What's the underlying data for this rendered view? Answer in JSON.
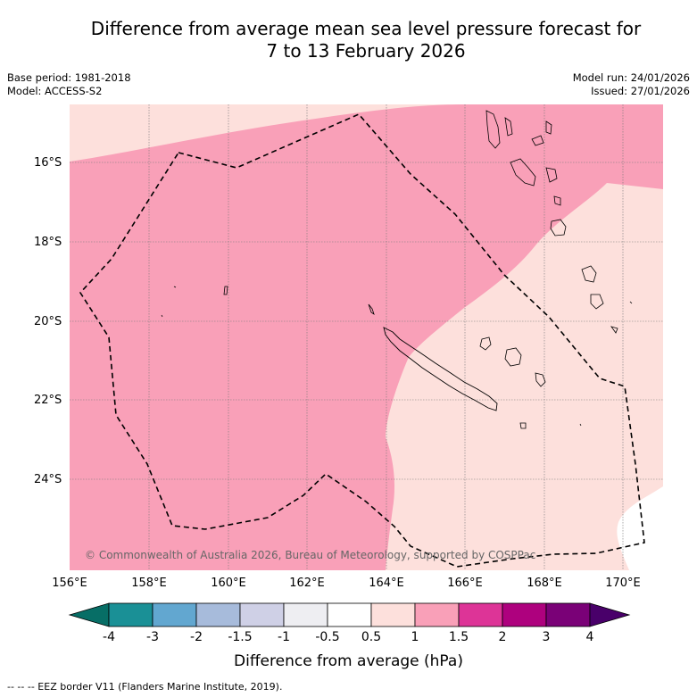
{
  "title_line1": "Difference from average mean sea level pressure forecast for",
  "title_line2": "7 to 13 February 2026",
  "meta_left": {
    "base_period": "Base period: 1981-2018",
    "model": "Model: ACCESS-S2"
  },
  "meta_right": {
    "model_run": "Model run: 24/01/2026",
    "issued": "Issued: 27/01/2026"
  },
  "copyright": "© Commonwealth of Australia 2026, Bureau of Meteorology, supported by COSPPac",
  "lat_labels": [
    "16°S",
    "18°S",
    "20°S",
    "22°S",
    "24°S"
  ],
  "lon_labels": [
    "156°E",
    "158°E",
    "160°E",
    "162°E",
    "164°E",
    "166°E",
    "168°E",
    "170°E"
  ],
  "colorbar": {
    "ticks": [
      "-4",
      "-3",
      "-2",
      "-1.5",
      "-1",
      "-0.5",
      "0.5",
      "1",
      "1.5",
      "2",
      "3",
      "4"
    ],
    "label": "Difference from average (hPa)",
    "colors": [
      "#076e66",
      "#1a9096",
      "#62a7d0",
      "#a7bbdb",
      "#cfd0e6",
      "#eeeef2",
      "#ffffff",
      "#fde0dc",
      "#f9a0b8",
      "#dd3497",
      "#ae017e",
      "#7a0177",
      "#49006a"
    ]
  },
  "legend_footer": "--  --  -- EEZ border V11 (Flanders Marine Institute, 2019).",
  "fill_colors": {
    "light": "#fde0dc",
    "medium": "#f9a0b8"
  }
}
